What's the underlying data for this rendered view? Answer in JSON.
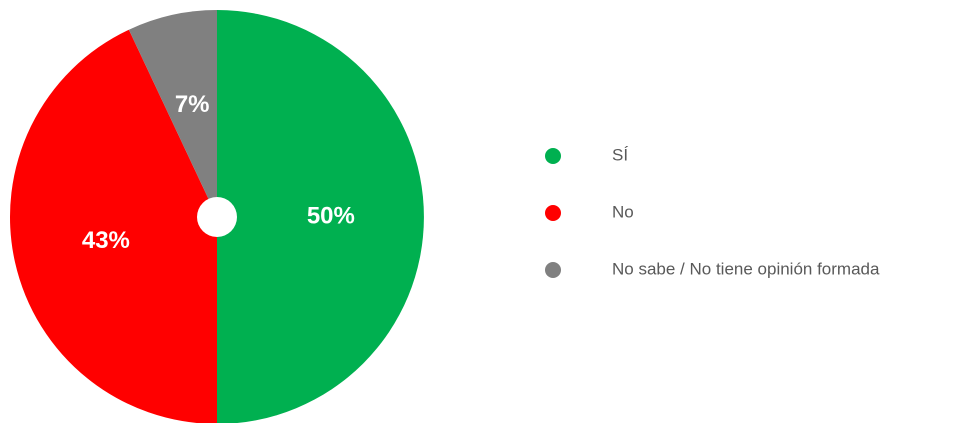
{
  "chart_data": {
    "type": "pie",
    "categories": [
      "SÍ",
      "No",
      "No sabe / No tiene opinión formada"
    ],
    "values": [
      50,
      43,
      7
    ],
    "value_labels": [
      "50%",
      "43%",
      "7%"
    ],
    "colors": [
      "#00b050",
      "#ff0000",
      "#808080"
    ],
    "legend": "right"
  }
}
